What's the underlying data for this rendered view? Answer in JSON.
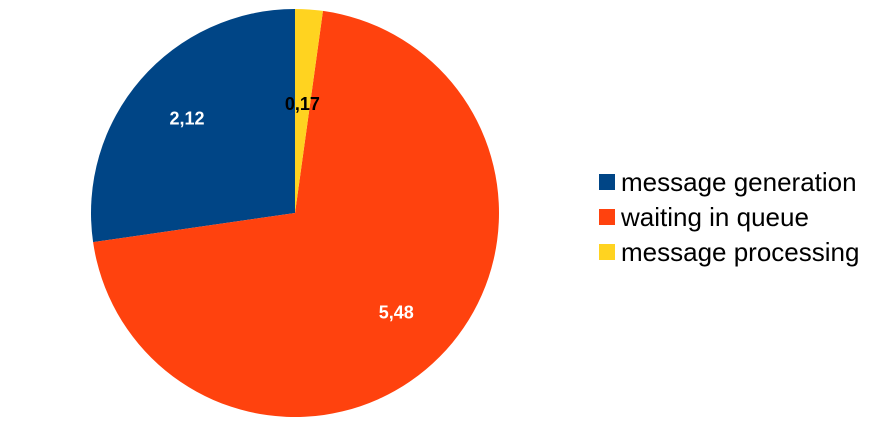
{
  "chart_data": {
    "type": "pie",
    "title": "",
    "categories": [
      "message generation",
      "waiting in queue",
      "message processing"
    ],
    "values": [
      2.12,
      5.48,
      0.17
    ],
    "value_labels": [
      "2,12",
      "5,48",
      "0,17"
    ],
    "colors": [
      "#004586",
      "#ff420e",
      "#ffd320"
    ],
    "label_colors": [
      "#ffffff",
      "#ffffff",
      "#000000"
    ],
    "start_angle_deg": -90,
    "direction": "counterclockwise",
    "legend_position": "right"
  }
}
